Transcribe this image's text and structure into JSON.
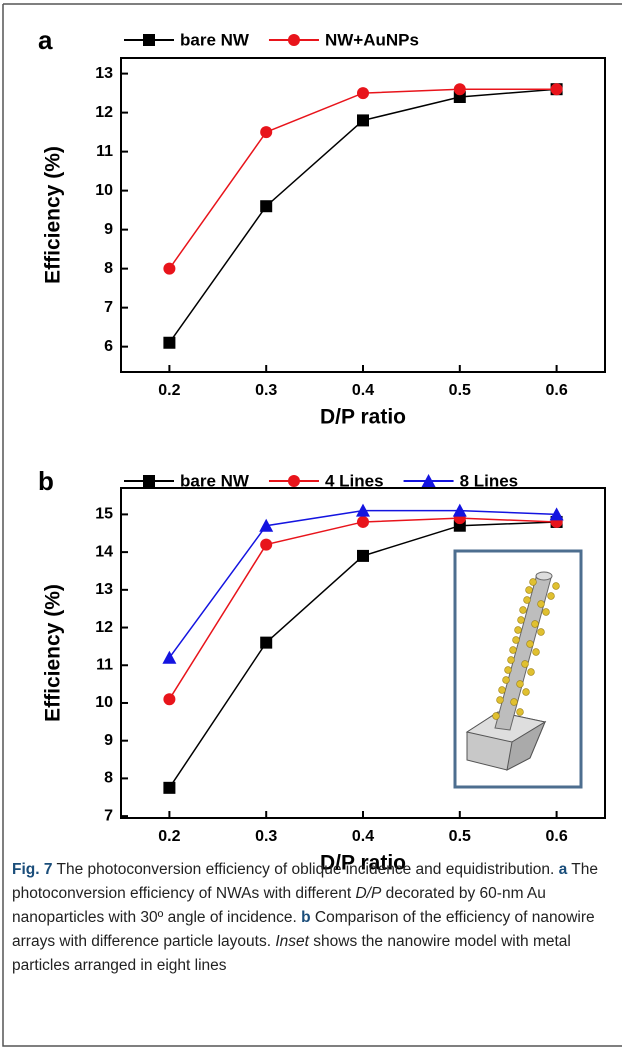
{
  "chart_data": [
    {
      "type": "line",
      "panel_label": "a",
      "x_label": "D/P ratio",
      "y_label": "Efficiency (%)",
      "x": [
        0.2,
        0.3,
        0.4,
        0.5,
        0.6
      ],
      "series": [
        {
          "name": "bare NW",
          "color": "#000000",
          "marker": "square",
          "values": [
            6.1,
            9.6,
            11.8,
            12.4,
            12.6
          ]
        },
        {
          "name": "NW+AuNPs",
          "color": "#e8141b",
          "marker": "circle",
          "values": [
            8.0,
            11.5,
            12.5,
            12.6,
            12.6
          ]
        }
      ],
      "xlim": [
        0.15,
        0.65
      ],
      "xticks": [
        0.2,
        0.3,
        0.4,
        0.5,
        0.6
      ],
      "ylim": [
        5.35,
        13.4
      ],
      "yticks": [
        6,
        7,
        8,
        9,
        10,
        11,
        12,
        13
      ]
    },
    {
      "type": "line",
      "panel_label": "b",
      "x_label": "D/P ratio",
      "y_label": "Efficiency (%)",
      "x": [
        0.2,
        0.3,
        0.4,
        0.5,
        0.6
      ],
      "series": [
        {
          "name": "bare NW",
          "color": "#000000",
          "marker": "square",
          "values": [
            7.75,
            11.6,
            13.9,
            14.7,
            14.8
          ]
        },
        {
          "name": "4 Lines",
          "color": "#e8141b",
          "marker": "circle",
          "values": [
            10.1,
            14.2,
            14.8,
            14.9,
            14.8
          ]
        },
        {
          "name": "8 Lines",
          "color": "#1414e0",
          "marker": "triangle",
          "values": [
            11.2,
            14.7,
            15.1,
            15.1,
            15.0
          ]
        }
      ],
      "xlim": [
        0.15,
        0.65
      ],
      "xticks": [
        0.2,
        0.3,
        0.4,
        0.5,
        0.6
      ],
      "ylim": [
        6.95,
        15.7
      ],
      "yticks": [
        7,
        8,
        9,
        10,
        11,
        12,
        13,
        14,
        15
      ]
    }
  ],
  "caption": {
    "parts": [
      "Fig. 7",
      " The photoconversion efficiency of oblique incidence and equidistribution. ",
      "a",
      " The photoconversion efficiency of NWAs with different ",
      "D/P",
      " decorated by 60-nm Au nanoparticles with 30º angle of incidence. ",
      "b",
      " Comparison of the efficiency of nanowire arrays with difference particle layouts. ",
      "Inset",
      " shows the nanowire model with metal particles arranged in eight lines"
    ]
  }
}
